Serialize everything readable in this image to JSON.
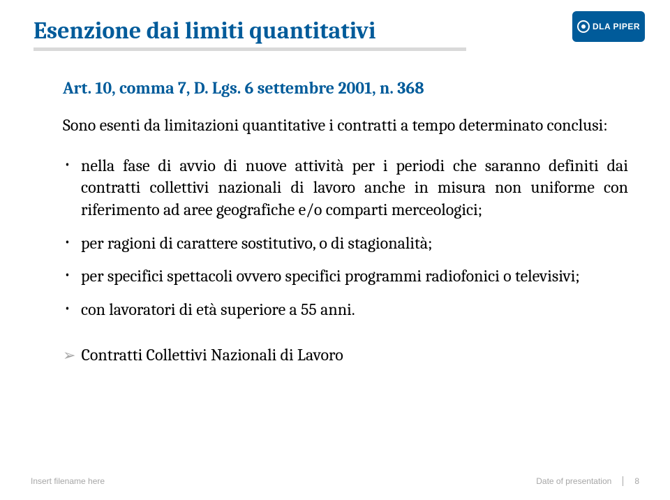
{
  "title": {
    "text": "Esenzione dai limiti quantitativi",
    "color": "#005b9a",
    "fontsize": 34,
    "underline_color": "#d9d9d9"
  },
  "logo": {
    "brand": "DLA PIPER",
    "bg_color": "#005b9a",
    "text_color": "#ffffff"
  },
  "subtitle": {
    "text": "Art. 10, comma 7, D. Lgs. 6 settembre 2001, n. 368",
    "color": "#005b9a",
    "fontsize": 24
  },
  "lead": "Sono esenti da limitazioni quantitative i contratti a tempo determinato conclusi:",
  "bullets": [
    "nella fase di avvio di nuove attività per i periodi che saranno definiti dai contratti collettivi nazionali di lavoro anche in misura non uniforme con riferimento ad aree geografiche e/o comparti merceologici;",
    "per ragioni di carattere sostitutivo, o di stagionalità;",
    "per specifici spettacoli ovvero specifici programmi radiofonici o televisivi;",
    "con lavoratori di età superiore a 55 anni."
  ],
  "footnote": "Contratti Collettivi Nazionali di Lavoro",
  "footer": {
    "left": "Insert filename here",
    "center": "Date of presentation",
    "page": "8",
    "color": "#a6a6a6",
    "fontsize": 12
  },
  "body_fontsize": 24,
  "body_color": "#000000",
  "background_color": "#ffffff"
}
